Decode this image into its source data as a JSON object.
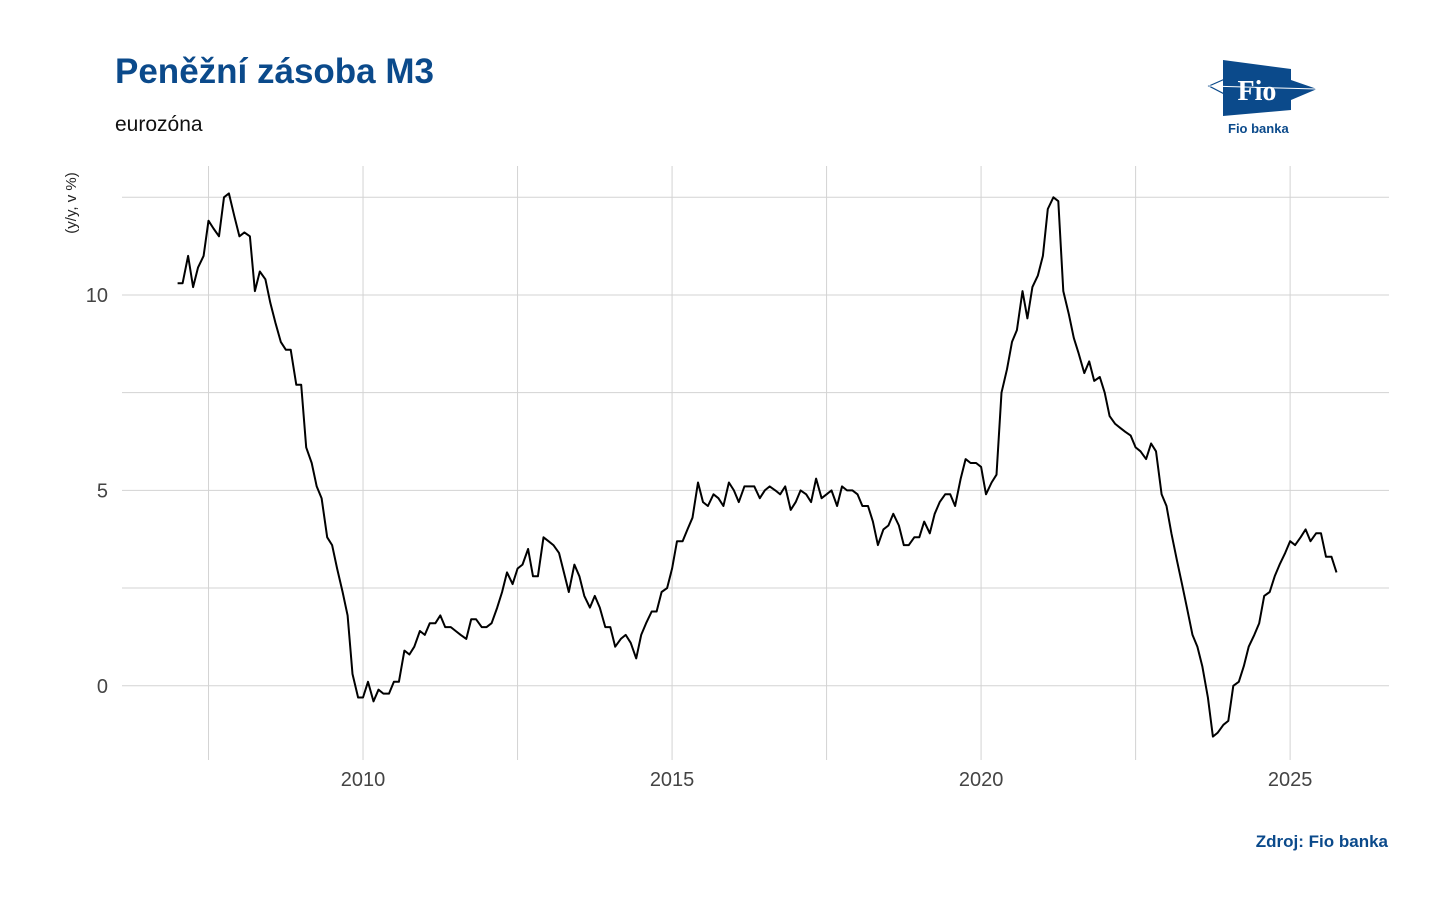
{
  "header": {
    "title": "Peněžní zásoba M3",
    "subtitle": "eurozóna"
  },
  "footer": {
    "source": "Zdroj: Fio banka"
  },
  "logo": {
    "mark_text": "Fio",
    "caption": "Fio banka"
  },
  "colors": {
    "brand": "#0b4a8b",
    "line": "#000000",
    "grid": "#d3d3d3"
  },
  "chart_data": {
    "type": "line",
    "title": "Peněžní zásoba M3",
    "subtitle": "eurozóna",
    "xlabel": "",
    "ylabel": "(y/y, v %)",
    "xlim": [
      2006.1,
      2026.6
    ],
    "ylim": [
      -1.9,
      13.3
    ],
    "x_ticks": [
      2010,
      2015,
      2020,
      2025
    ],
    "x_tick_labels": [
      "2010",
      "2015",
      "2020",
      "2025"
    ],
    "y_ticks": [
      0,
      5,
      10
    ],
    "y_tick_labels": [
      "0",
      "5",
      "10"
    ],
    "grid": true,
    "legend": "none",
    "series": [
      {
        "points": [
          [
            2007.0,
            10.3
          ],
          [
            2007.08,
            10.3
          ],
          [
            2007.17,
            11.0
          ],
          [
            2007.25,
            10.2
          ],
          [
            2007.33,
            10.7
          ],
          [
            2007.42,
            11.0
          ],
          [
            2007.5,
            11.9
          ],
          [
            2007.58,
            11.7
          ],
          [
            2007.67,
            11.5
          ],
          [
            2007.75,
            12.5
          ],
          [
            2007.83,
            12.6
          ],
          [
            2007.92,
            12.0
          ],
          [
            2008.0,
            11.5
          ],
          [
            2008.08,
            11.6
          ],
          [
            2008.17,
            11.5
          ],
          [
            2008.25,
            10.1
          ],
          [
            2008.33,
            10.6
          ],
          [
            2008.42,
            10.4
          ],
          [
            2008.5,
            9.8
          ],
          [
            2008.58,
            9.3
          ],
          [
            2008.67,
            8.8
          ],
          [
            2008.75,
            8.6
          ],
          [
            2008.83,
            8.6
          ],
          [
            2008.92,
            7.7
          ],
          [
            2009.0,
            7.7
          ],
          [
            2009.08,
            6.1
          ],
          [
            2009.17,
            5.7
          ],
          [
            2009.25,
            5.1
          ],
          [
            2009.33,
            4.8
          ],
          [
            2009.42,
            3.8
          ],
          [
            2009.5,
            3.6
          ],
          [
            2009.58,
            3.0
          ],
          [
            2009.67,
            2.4
          ],
          [
            2009.75,
            1.8
          ],
          [
            2009.83,
            0.3
          ],
          [
            2009.92,
            -0.3
          ],
          [
            2010.0,
            -0.3
          ],
          [
            2010.08,
            0.1
          ],
          [
            2010.17,
            -0.4
          ],
          [
            2010.25,
            -0.1
          ],
          [
            2010.33,
            -0.2
          ],
          [
            2010.42,
            -0.2
          ],
          [
            2010.5,
            0.1
          ],
          [
            2010.58,
            0.1
          ],
          [
            2010.67,
            0.9
          ],
          [
            2010.75,
            0.8
          ],
          [
            2010.83,
            1.0
          ],
          [
            2010.92,
            1.4
          ],
          [
            2011.0,
            1.3
          ],
          [
            2011.08,
            1.6
          ],
          [
            2011.17,
            1.6
          ],
          [
            2011.25,
            1.8
          ],
          [
            2011.33,
            1.5
          ],
          [
            2011.42,
            1.5
          ],
          [
            2011.5,
            1.4
          ],
          [
            2011.58,
            1.3
          ],
          [
            2011.67,
            1.2
          ],
          [
            2011.75,
            1.7
          ],
          [
            2011.83,
            1.7
          ],
          [
            2011.92,
            1.5
          ],
          [
            2012.0,
            1.5
          ],
          [
            2012.08,
            1.6
          ],
          [
            2012.17,
            2.0
          ],
          [
            2012.25,
            2.4
          ],
          [
            2012.33,
            2.9
          ],
          [
            2012.42,
            2.6
          ],
          [
            2012.5,
            3.0
          ],
          [
            2012.58,
            3.1
          ],
          [
            2012.67,
            3.5
          ],
          [
            2012.75,
            2.8
          ],
          [
            2012.83,
            2.8
          ],
          [
            2012.92,
            3.8
          ],
          [
            2013.0,
            3.7
          ],
          [
            2013.08,
            3.6
          ],
          [
            2013.17,
            3.4
          ],
          [
            2013.25,
            2.9
          ],
          [
            2013.33,
            2.4
          ],
          [
            2013.42,
            3.1
          ],
          [
            2013.5,
            2.8
          ],
          [
            2013.58,
            2.3
          ],
          [
            2013.67,
            2.0
          ],
          [
            2013.75,
            2.3
          ],
          [
            2013.83,
            2.0
          ],
          [
            2013.92,
            1.5
          ],
          [
            2014.0,
            1.5
          ],
          [
            2014.08,
            1.0
          ],
          [
            2014.17,
            1.2
          ],
          [
            2014.25,
            1.3
          ],
          [
            2014.33,
            1.1
          ],
          [
            2014.42,
            0.7
          ],
          [
            2014.5,
            1.3
          ],
          [
            2014.58,
            1.6
          ],
          [
            2014.67,
            1.9
          ],
          [
            2014.75,
            1.9
          ],
          [
            2014.83,
            2.4
          ],
          [
            2014.92,
            2.5
          ],
          [
            2015.0,
            3.0
          ],
          [
            2015.08,
            3.7
          ],
          [
            2015.17,
            3.7
          ],
          [
            2015.25,
            4.0
          ],
          [
            2015.33,
            4.3
          ],
          [
            2015.42,
            5.2
          ],
          [
            2015.5,
            4.7
          ],
          [
            2015.58,
            4.6
          ],
          [
            2015.67,
            4.9
          ],
          [
            2015.75,
            4.8
          ],
          [
            2015.83,
            4.6
          ],
          [
            2015.92,
            5.2
          ],
          [
            2016.0,
            5.0
          ],
          [
            2016.08,
            4.7
          ],
          [
            2016.17,
            5.1
          ],
          [
            2016.25,
            5.1
          ],
          [
            2016.33,
            5.1
          ],
          [
            2016.42,
            4.8
          ],
          [
            2016.5,
            5.0
          ],
          [
            2016.58,
            5.1
          ],
          [
            2016.67,
            5.0
          ],
          [
            2016.75,
            4.9
          ],
          [
            2016.83,
            5.1
          ],
          [
            2016.92,
            4.5
          ],
          [
            2017.0,
            4.7
          ],
          [
            2017.08,
            5.0
          ],
          [
            2017.17,
            4.9
          ],
          [
            2017.25,
            4.7
          ],
          [
            2017.33,
            5.3
          ],
          [
            2017.42,
            4.8
          ],
          [
            2017.5,
            4.9
          ],
          [
            2017.58,
            5.0
          ],
          [
            2017.67,
            4.6
          ],
          [
            2017.75,
            5.1
          ],
          [
            2017.83,
            5.0
          ],
          [
            2017.92,
            5.0
          ],
          [
            2018.0,
            4.9
          ],
          [
            2018.08,
            4.6
          ],
          [
            2018.17,
            4.6
          ],
          [
            2018.25,
            4.2
          ],
          [
            2018.33,
            3.6
          ],
          [
            2018.42,
            4.0
          ],
          [
            2018.5,
            4.1
          ],
          [
            2018.58,
            4.4
          ],
          [
            2018.67,
            4.1
          ],
          [
            2018.75,
            3.6
          ],
          [
            2018.83,
            3.6
          ],
          [
            2018.92,
            3.8
          ],
          [
            2019.0,
            3.8
          ],
          [
            2019.08,
            4.2
          ],
          [
            2019.17,
            3.9
          ],
          [
            2019.25,
            4.4
          ],
          [
            2019.33,
            4.7
          ],
          [
            2019.42,
            4.9
          ],
          [
            2019.5,
            4.9
          ],
          [
            2019.58,
            4.6
          ],
          [
            2019.67,
            5.3
          ],
          [
            2019.75,
            5.8
          ],
          [
            2019.83,
            5.7
          ],
          [
            2019.92,
            5.7
          ],
          [
            2020.0,
            5.6
          ],
          [
            2020.08,
            4.9
          ],
          [
            2020.17,
            5.2
          ],
          [
            2020.25,
            5.4
          ],
          [
            2020.33,
            7.5
          ],
          [
            2020.42,
            8.1
          ],
          [
            2020.5,
            8.8
          ],
          [
            2020.58,
            9.1
          ],
          [
            2020.67,
            10.1
          ],
          [
            2020.75,
            9.4
          ],
          [
            2020.83,
            10.2
          ],
          [
            2020.92,
            10.5
          ],
          [
            2021.0,
            11.0
          ],
          [
            2021.08,
            12.2
          ],
          [
            2021.17,
            12.5
          ],
          [
            2021.25,
            12.4
          ],
          [
            2021.33,
            10.1
          ],
          [
            2021.42,
            9.5
          ],
          [
            2021.5,
            8.9
          ],
          [
            2021.58,
            8.5
          ],
          [
            2021.67,
            8.0
          ],
          [
            2021.75,
            8.3
          ],
          [
            2021.83,
            7.8
          ],
          [
            2021.92,
            7.9
          ],
          [
            2022.0,
            7.5
          ],
          [
            2022.08,
            6.9
          ],
          [
            2022.17,
            6.7
          ],
          [
            2022.25,
            6.6
          ],
          [
            2022.33,
            6.5
          ],
          [
            2022.42,
            6.4
          ],
          [
            2022.5,
            6.1
          ],
          [
            2022.58,
            6.0
          ],
          [
            2022.67,
            5.8
          ],
          [
            2022.75,
            6.2
          ],
          [
            2022.83,
            6.0
          ],
          [
            2022.92,
            4.9
          ],
          [
            2023.0,
            4.6
          ],
          [
            2023.08,
            3.9
          ],
          [
            2023.17,
            3.2
          ],
          [
            2023.25,
            2.6
          ],
          [
            2023.33,
            2.0
          ],
          [
            2023.42,
            1.3
          ],
          [
            2023.5,
            1.0
          ],
          [
            2023.58,
            0.5
          ],
          [
            2023.67,
            -0.3
          ],
          [
            2023.75,
            -1.3
          ],
          [
            2023.83,
            -1.2
          ],
          [
            2023.92,
            -1.0
          ],
          [
            2024.0,
            -0.9
          ],
          [
            2024.08,
            0.0
          ],
          [
            2024.17,
            0.1
          ],
          [
            2024.25,
            0.5
          ],
          [
            2024.33,
            1.0
          ],
          [
            2024.42,
            1.3
          ],
          [
            2024.5,
            1.6
          ],
          [
            2024.58,
            2.3
          ],
          [
            2024.67,
            2.4
          ],
          [
            2024.75,
            2.8
          ],
          [
            2024.83,
            3.1
          ],
          [
            2024.92,
            3.4
          ],
          [
            2025.0,
            3.7
          ],
          [
            2025.08,
            3.6
          ],
          [
            2025.17,
            3.8
          ],
          [
            2025.25,
            4.0
          ],
          [
            2025.33,
            3.7
          ],
          [
            2025.42,
            3.9
          ],
          [
            2025.5,
            3.9
          ],
          [
            2025.58,
            3.3
          ],
          [
            2025.67,
            3.3
          ],
          [
            2025.75,
            2.9
          ]
        ]
      }
    ]
  }
}
